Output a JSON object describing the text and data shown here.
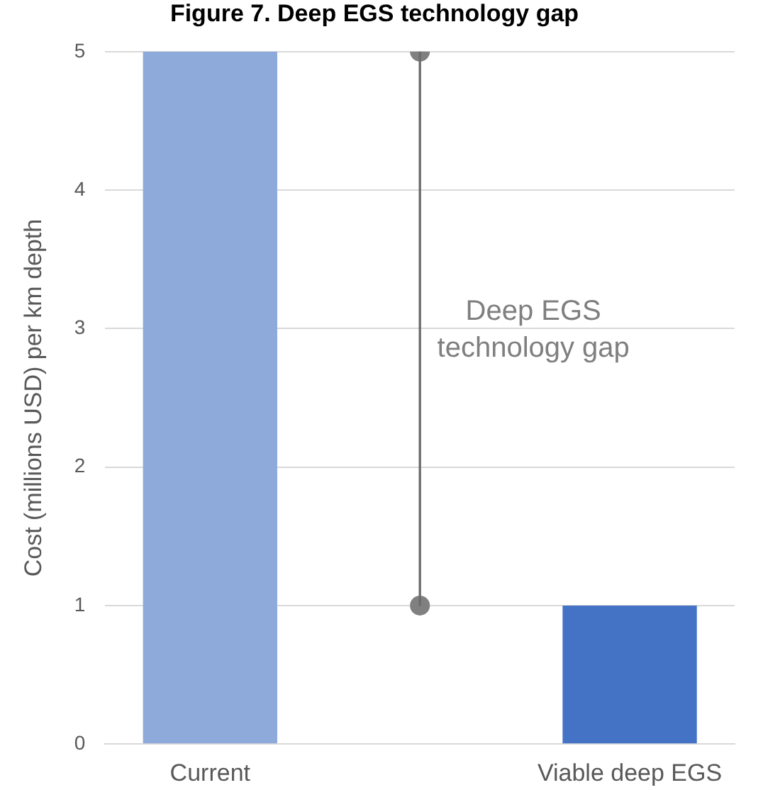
{
  "chart_data": {
    "type": "bar",
    "title": "Figure 7. Deep EGS technology gap",
    "ylabel": "Cost (millions USD) per km depth",
    "categories": [
      "Current",
      null,
      "Viable deep EGS"
    ],
    "series": [
      {
        "values": [
          5,
          null,
          1
        ],
        "colors": [
          "#8eaadb",
          null,
          "#4472c4"
        ]
      },
      {
        "values": [
          null,
          4,
          null
        ],
        "base": [
          null,
          1,
          null
        ],
        "color": "#6b6b6b"
      },
      {
        "type": "scatter",
        "values": [
          null,
          5,
          null
        ],
        "color": "#808080"
      },
      {
        "type": "scatter",
        "values": [
          null,
          1,
          null
        ],
        "color": "#808080"
      }
    ],
    "marker": "circle",
    "ylim": [
      0,
      5
    ],
    "yticks": [
      0,
      1,
      2,
      3,
      4,
      5
    ],
    "grid": "y",
    "legend": false,
    "annotations": [
      "Deep EGS technology gap"
    ]
  }
}
